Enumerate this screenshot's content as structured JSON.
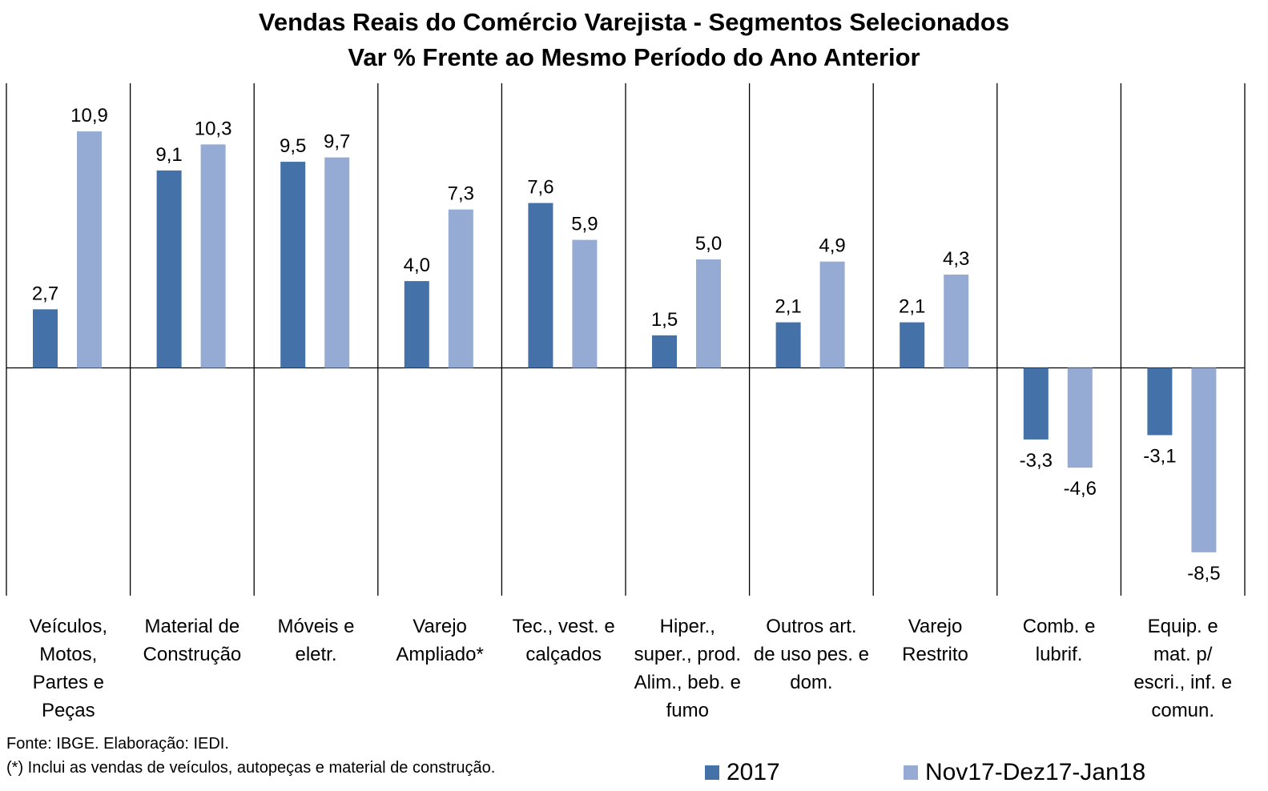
{
  "chart_data": {
    "type": "bar",
    "title": "Vendas Reais do Comércio Varejista - Segmentos Selecionados",
    "subtitle": "Var % Frente ao Mesmo Período do Ano Anterior",
    "categories": [
      [
        "Veículos,",
        "Motos,",
        "Partes e",
        "Peças"
      ],
      [
        "Material de",
        "Construção"
      ],
      [
        "Móveis e",
        "eletr."
      ],
      [
        "Varejo",
        "Ampliado*"
      ],
      [
        "Tec., vest. e",
        "calçados"
      ],
      [
        "Hiper.,",
        "super., prod.",
        "Alim., beb. e",
        "fumo"
      ],
      [
        "Outros art.",
        "de uso pes. e",
        "dom."
      ],
      [
        "Varejo",
        "Restrito"
      ],
      [
        "Comb. e",
        "lubrif."
      ],
      [
        "Equip. e",
        "mat. p/",
        "escri., inf. e",
        "comun."
      ]
    ],
    "series": [
      {
        "name": "2017",
        "color": "#4472A8",
        "values": [
          2.7,
          9.1,
          9.5,
          4.0,
          7.6,
          1.5,
          2.1,
          2.1,
          -3.3,
          -3.1
        ]
      },
      {
        "name": "Nov17-Dez17-Jan18",
        "color": "#95ABD3",
        "values": [
          10.9,
          10.3,
          9.7,
          7.3,
          5.9,
          5.0,
          4.9,
          4.3,
          -4.6,
          -8.5
        ]
      }
    ],
    "data_labels": [
      [
        "2,7",
        "9,1",
        "9,5",
        "4,0",
        "7,6",
        "1,5",
        "2,1",
        "2,1",
        "-3,3",
        "-3,1"
      ],
      [
        "10,9",
        "10,3",
        "9,7",
        "7,3",
        "5,9",
        "5,0",
        "4,9",
        "4,3",
        "-4,6",
        "-8,5"
      ]
    ],
    "ylim": [
      -10.5,
      13.1
    ],
    "xlabel": "",
    "ylabel": "",
    "grid": false,
    "legend": "bottom-right"
  },
  "footnotes": {
    "source": "Fonte: IBGE. Elaboração: IEDI.",
    "note": "(*) Inclui as vendas de veículos, autopeças e material de construção."
  }
}
